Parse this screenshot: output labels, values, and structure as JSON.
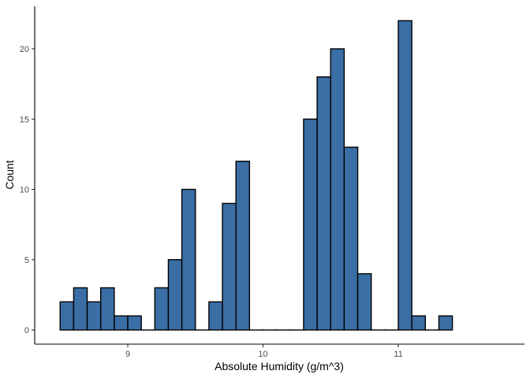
{
  "chart_data": {
    "type": "bar",
    "xlabel": "Absolute Humidity (g/m^3)",
    "ylabel": "Count",
    "bar_fill": "#3a6ea5",
    "bar_stroke": "#000000",
    "bin_width": 0.1,
    "xlim": [
      8.4,
      11.9
    ],
    "ylim": [
      0,
      23.3
    ],
    "x_ticks": [
      9,
      10,
      11
    ],
    "x_tick_labels": [
      "9",
      "10",
      "11"
    ],
    "y_ticks": [
      0,
      5,
      10,
      15,
      20
    ],
    "y_tick_labels": [
      "0",
      "5",
      "10",
      "15",
      "20"
    ],
    "grid": false,
    "bins": [
      {
        "x": 8.55,
        "count": 2
      },
      {
        "x": 8.65,
        "count": 3
      },
      {
        "x": 8.75,
        "count": 2
      },
      {
        "x": 8.85,
        "count": 3
      },
      {
        "x": 8.95,
        "count": 1
      },
      {
        "x": 9.05,
        "count": 1
      },
      {
        "x": 9.15,
        "count": 0
      },
      {
        "x": 9.25,
        "count": 3
      },
      {
        "x": 9.35,
        "count": 5
      },
      {
        "x": 9.45,
        "count": 10
      },
      {
        "x": 9.55,
        "count": 0
      },
      {
        "x": 9.65,
        "count": 2
      },
      {
        "x": 9.75,
        "count": 9
      },
      {
        "x": 9.85,
        "count": 12
      },
      {
        "x": 9.95,
        "count": 0
      },
      {
        "x": 10.05,
        "count": 0
      },
      {
        "x": 10.15,
        "count": 0
      },
      {
        "x": 10.25,
        "count": 0
      },
      {
        "x": 10.35,
        "count": 15
      },
      {
        "x": 10.45,
        "count": 18
      },
      {
        "x": 10.55,
        "count": 20
      },
      {
        "x": 10.65,
        "count": 13
      },
      {
        "x": 10.75,
        "count": 4
      },
      {
        "x": 10.85,
        "count": 0
      },
      {
        "x": 10.95,
        "count": 0
      },
      {
        "x": 11.05,
        "count": 22
      },
      {
        "x": 11.15,
        "count": 1
      },
      {
        "x": 11.25,
        "count": 0
      },
      {
        "x": 11.35,
        "count": 1
      }
    ]
  }
}
